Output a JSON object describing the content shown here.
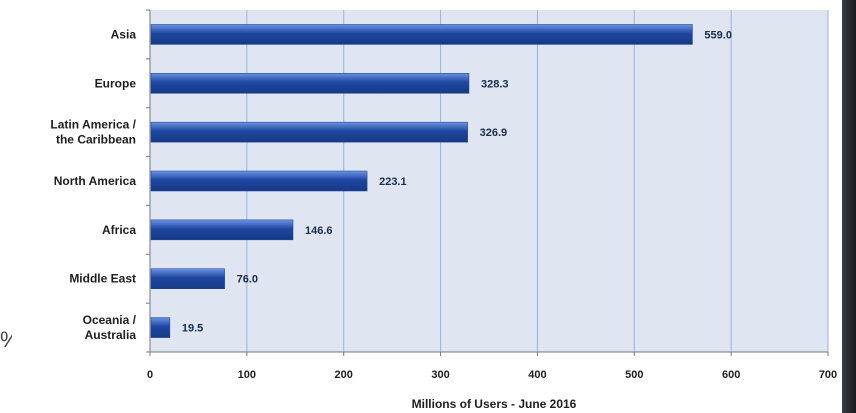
{
  "chart_data": {
    "type": "bar",
    "orientation": "horizontal",
    "categories": [
      "Asia",
      "Europe",
      "Latin America / the Caribbean",
      "North America",
      "Africa",
      "Middle East",
      "Oceania / Australia"
    ],
    "category_lines": [
      [
        "Asia"
      ],
      [
        "Europe"
      ],
      [
        "Latin America /",
        "the Caribbean"
      ],
      [
        "North America"
      ],
      [
        "Africa"
      ],
      [
        "Middle East"
      ],
      [
        "Oceania  /",
        "Australia"
      ]
    ],
    "values": [
      559.0,
      328.3,
      326.9,
      223.1,
      146.6,
      76.0,
      19.5
    ],
    "value_labels": [
      "559.0",
      "328.3",
      "326.9",
      "223.1",
      "146.6",
      "76.0",
      "19.5"
    ],
    "xlabel": "Millions of Users - June 2016",
    "ylabel": "",
    "xlim": [
      0,
      700
    ],
    "xticks": [
      0,
      100,
      200,
      300,
      400,
      500,
      600,
      700
    ],
    "grid": true,
    "colors": {
      "plot_bg": "#dfe6f2",
      "grid": "#9fb3d9",
      "bar_dark": "#1f47a0",
      "bar_light": "#6b93e3"
    }
  },
  "edge_glyph": "%"
}
